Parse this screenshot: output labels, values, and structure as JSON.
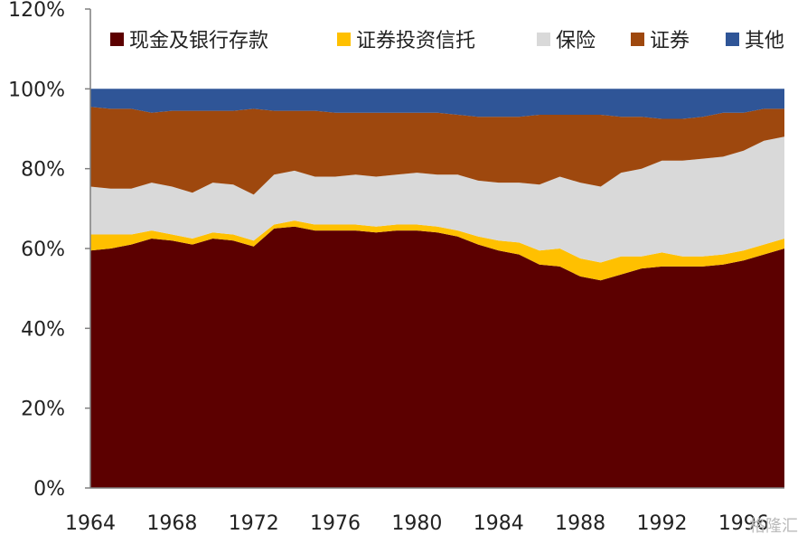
{
  "chart_data": {
    "type": "area",
    "stacked": true,
    "years": [
      1964,
      1965,
      1966,
      1967,
      1968,
      1969,
      1970,
      1971,
      1972,
      1973,
      1974,
      1975,
      1976,
      1977,
      1978,
      1979,
      1980,
      1981,
      1982,
      1983,
      1984,
      1985,
      1986,
      1987,
      1988,
      1989,
      1990,
      1991,
      1992,
      1993,
      1994,
      1995,
      1996,
      1997,
      1998
    ],
    "series": [
      {
        "name": "现金及银行存款",
        "color": "#5c0000",
        "values": [
          59.5,
          60.0,
          61.0,
          62.5,
          62.0,
          61.0,
          62.5,
          62.0,
          60.5,
          65.0,
          65.5,
          64.5,
          64.5,
          64.5,
          64.0,
          64.5,
          64.5,
          64.0,
          63.0,
          61.0,
          59.5,
          58.5,
          56.0,
          55.5,
          53.0,
          52.0,
          53.5,
          55.0,
          55.5,
          55.5,
          55.5,
          56.0,
          57.0,
          58.5,
          60.0
        ]
      },
      {
        "name": "证券投资信托",
        "color": "#ffc000",
        "values": [
          4.0,
          3.5,
          2.5,
          2.0,
          1.5,
          1.5,
          1.5,
          1.5,
          1.5,
          1.0,
          1.5,
          1.5,
          1.5,
          1.5,
          1.5,
          1.5,
          1.5,
          1.5,
          1.5,
          2.0,
          2.5,
          3.0,
          3.5,
          4.5,
          4.5,
          4.5,
          4.5,
          3.0,
          3.5,
          2.5,
          2.5,
          2.5,
          2.5,
          2.5,
          2.5
        ]
      },
      {
        "name": "保险",
        "color": "#d9d9d9",
        "values": [
          12.0,
          11.5,
          11.5,
          12.0,
          12.0,
          11.5,
          12.5,
          12.5,
          11.5,
          12.5,
          12.5,
          12.0,
          12.0,
          12.5,
          12.5,
          12.5,
          13.0,
          13.0,
          14.0,
          14.0,
          14.5,
          15.0,
          16.5,
          18.0,
          19.0,
          19.0,
          21.0,
          22.0,
          23.0,
          24.0,
          24.5,
          24.5,
          25.0,
          26.0,
          25.5
        ]
      },
      {
        "name": "证券",
        "color": "#9e480e",
        "values": [
          20.0,
          20.0,
          20.0,
          17.5,
          19.0,
          20.5,
          18.0,
          18.5,
          21.5,
          16.0,
          15.0,
          16.5,
          16.0,
          15.5,
          16.0,
          15.5,
          15.0,
          15.5,
          15.0,
          16.0,
          16.5,
          16.5,
          17.5,
          15.5,
          17.0,
          18.0,
          14.0,
          13.0,
          10.5,
          10.5,
          10.5,
          11.0,
          9.5,
          8.0,
          7.0
        ]
      },
      {
        "name": "其他",
        "color": "#2f5597",
        "values": [
          4.5,
          5.0,
          5.0,
          6.0,
          5.5,
          5.5,
          5.5,
          5.5,
          5.0,
          5.5,
          5.5,
          5.5,
          6.0,
          6.0,
          6.0,
          6.0,
          6.0,
          6.0,
          6.5,
          7.0,
          7.0,
          7.0,
          6.5,
          6.5,
          6.5,
          6.5,
          7.0,
          7.0,
          7.5,
          7.5,
          7.0,
          6.0,
          6.0,
          5.0,
          5.0
        ]
      }
    ],
    "x_tick_labels": [
      "1964",
      "1968",
      "1972",
      "1976",
      "1980",
      "1984",
      "1988",
      "1992",
      "1996"
    ],
    "y_tick_labels": [
      "0%",
      "20%",
      "40%",
      "60%",
      "80%",
      "100%",
      "120%"
    ],
    "ylim": [
      0,
      120
    ],
    "grid": false,
    "legend_position": "top"
  },
  "watermark": "格隆汇"
}
